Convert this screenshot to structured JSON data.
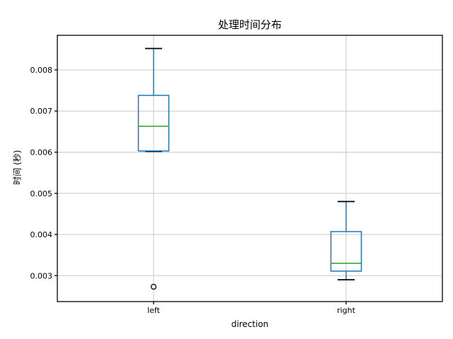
{
  "chart_data": {
    "type": "boxplot",
    "title": "处理时间分布",
    "xlabel": "direction",
    "ylabel": "时间 (秒)",
    "categories": [
      "left",
      "right"
    ],
    "series": [
      {
        "name": "left",
        "whislo": 0.00602,
        "q1": 0.00603,
        "med": 0.00663,
        "q3": 0.00738,
        "whishi": 0.00852,
        "fliers": [
          0.00273
        ]
      },
      {
        "name": "right",
        "whislo": 0.0029,
        "q1": 0.00311,
        "med": 0.0033,
        "q3": 0.00407,
        "whishi": 0.0048,
        "fliers": []
      }
    ],
    "yticks": [
      0.003,
      0.004,
      0.005,
      0.006,
      0.007,
      0.008
    ],
    "ytick_labels": [
      "0.003",
      "0.004",
      "0.005",
      "0.006",
      "0.007",
      "0.008"
    ],
    "ylim": [
      0.00237,
      0.00884
    ],
    "grid": true,
    "legend": null,
    "colors": {
      "box": "#1f77b4",
      "whisker": "#1f77b4",
      "median": "#2ca02c",
      "cap": "#000000",
      "flier": "#000000",
      "grid": "#c8c8c8",
      "spine": "#000000",
      "background": "#ffffff"
    }
  }
}
